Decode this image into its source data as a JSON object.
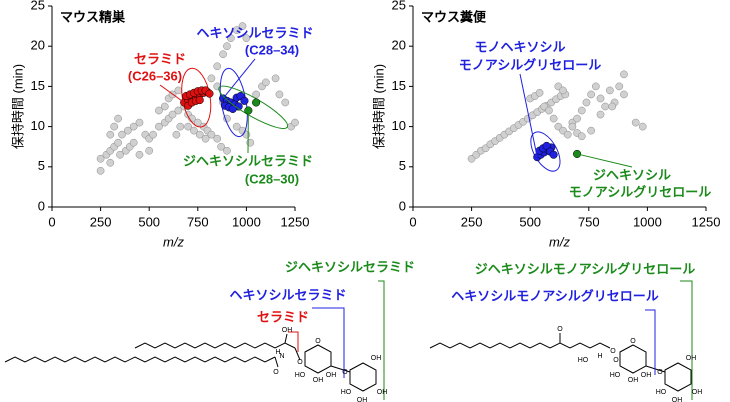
{
  "chart_data": [
    {
      "type": "scatter",
      "title": "マウス精巣",
      "xlabel": "m/z",
      "ylabel": "保持時間 (min)",
      "xlim": [
        0,
        1250
      ],
      "ylim": [
        0,
        25
      ],
      "xticks": [
        0,
        250,
        500,
        750,
        1000,
        1250
      ],
      "yticks": [
        0,
        5,
        10,
        15,
        20,
        25
      ],
      "series": [
        {
          "color": "#d0d0d0",
          "x": [
            250,
            280,
            300,
            320,
            340,
            300,
            350,
            380,
            400,
            420,
            360,
            390,
            420,
            450,
            480,
            500,
            520,
            550,
            580,
            600,
            620,
            650,
            680,
            700,
            720,
            750,
            780,
            800,
            820,
            850,
            700,
            730,
            760,
            790,
            640,
            660,
            680,
            600,
            620,
            650,
            580,
            550,
            300,
            320,
            340,
            900,
            950,
            980,
            1000,
            1020,
            1050,
            1080,
            1100,
            1150,
            1170,
            1200,
            1230,
            1250,
            820,
            850,
            880,
            900,
            920,
            950,
            980,
            1000,
            850,
            880,
            870,
            900,
            450,
            500,
            250
          ],
          "y": [
            6,
            6.5,
            7,
            7.5,
            8,
            5.5,
            6.5,
            7,
            7.5,
            8,
            9,
            9.5,
            10,
            10.5,
            9,
            8.5,
            9,
            10,
            10.5,
            11,
            11.5,
            12,
            12.5,
            11.5,
            11,
            10.5,
            10,
            9.5,
            9,
            8.5,
            10,
            9.5,
            9,
            8.5,
            9,
            10,
            13,
            13.5,
            14,
            14.5,
            12.5,
            12,
            9,
            10,
            11,
            11,
            10,
            9.5,
            9,
            8,
            14,
            15,
            15.5,
            16,
            14,
            13,
            10,
            10.5,
            16,
            17.5,
            19,
            20,
            21,
            22,
            22.5,
            21,
            15,
            13,
            7.5,
            7,
            6.5,
            7,
            4.5
          ]
        },
        {
          "name": [
            "セラミド",
            "(C26–36)"
          ],
          "color": "#e01010",
          "x": [
            680,
            700,
            720,
            740,
            760,
            780,
            800,
            690,
            710,
            730,
            750,
            770,
            790,
            810,
            700,
            720,
            740,
            760
          ],
          "y": [
            13,
            13.3,
            13.6,
            13.8,
            14,
            14.2,
            14.3,
            13.8,
            14,
            14.2,
            14.4,
            14.5,
            14.5,
            14.1,
            12.6,
            13,
            13.2,
            13.3
          ]
        },
        {
          "name": [
            "ヘキソシルセラミド",
            "(C28–34)"
          ],
          "color": "#2020e0",
          "x": [
            880,
            900,
            920,
            940,
            960,
            890,
            910,
            930,
            950,
            970,
            990
          ],
          "y": [
            13.5,
            13.2,
            13,
            12.8,
            12.5,
            12.6,
            12.4,
            12.2,
            13.6,
            13.8,
            13.2
          ]
        },
        {
          "name": [
            "ジヘキソシルセラミド",
            "(C28–30)"
          ],
          "color": "#1a8a1a",
          "x": [
            1010,
            1050
          ],
          "y": [
            12,
            13
          ]
        }
      ]
    },
    {
      "type": "scatter",
      "title": "マウス糞便",
      "xlabel": "m/z",
      "ylabel": "保持時間 (min)",
      "xlim": [
        0,
        1250
      ],
      "ylim": [
        0,
        25
      ],
      "xticks": [
        0,
        250,
        500,
        750,
        1000,
        1250
      ],
      "yticks": [
        0,
        5,
        10,
        15,
        20,
        25
      ],
      "series": [
        {
          "color": "#d0d0d0",
          "x": [
            250,
            270,
            290,
            310,
            330,
            350,
            370,
            390,
            410,
            430,
            450,
            470,
            490,
            510,
            530,
            550,
            570,
            590,
            610,
            630,
            650,
            500,
            520,
            540,
            560,
            580,
            600,
            620,
            640,
            660,
            680,
            700,
            720,
            740,
            760,
            780,
            800,
            820,
            840,
            860,
            880,
            900,
            680,
            700,
            720,
            760,
            800,
            850,
            900,
            950,
            980,
            620,
            640
          ],
          "y": [
            6,
            6.5,
            7,
            7.3,
            7.8,
            8.2,
            8.6,
            9,
            9.4,
            9.8,
            10.2,
            10.6,
            11,
            11.4,
            11.8,
            12.2,
            12.6,
            13,
            13.4,
            13.8,
            14,
            13.5,
            13.8,
            14.2,
            12.5,
            12,
            11,
            10,
            9.5,
            9,
            10.5,
            11,
            12,
            13,
            14,
            15,
            13.5,
            12.5,
            14.5,
            13,
            15,
            16.5,
            10,
            9.2,
            8.8,
            9.5,
            11.5,
            12.5,
            14,
            10.5,
            10,
            15,
            14.5
          ]
        },
        {
          "name": [
            "モノヘキソシル",
            "モノアシルグリセロール"
          ],
          "color": "#2020e0",
          "x": [
            530,
            545,
            560,
            575,
            590,
            540,
            555,
            570,
            585,
            600
          ],
          "y": [
            6.2,
            6.5,
            6.8,
            7.1,
            7.4,
            7,
            7.3,
            7.6,
            6.9,
            6.5
          ]
        },
        {
          "name": [
            "ジヘキソシル",
            "モノアシルグリセロール"
          ],
          "color": "#1a8a1a",
          "x": [
            700
          ],
          "y": [
            6.6
          ]
        }
      ]
    }
  ],
  "structures": {
    "left": {
      "labels": [
        "ジヘキソシルセラミド",
        "ヘキソシルセラミド",
        "セラミド"
      ],
      "atoms": [
        "OH",
        "N",
        "H",
        "O",
        "O",
        "O",
        "OH",
        "HO",
        "OH",
        "O",
        "OH",
        "HO",
        "OH",
        "OH"
      ]
    },
    "right": {
      "labels": [
        "ジヘキソシルモノアシルグリセロール",
        "ヘキソシルモノアシルグリセロール"
      ],
      "atoms": [
        "O",
        "O",
        "HO",
        "H",
        "O",
        "O",
        "OH",
        "HO",
        "OH",
        "O",
        "OH",
        "HO",
        "OH",
        "OH"
      ]
    }
  }
}
